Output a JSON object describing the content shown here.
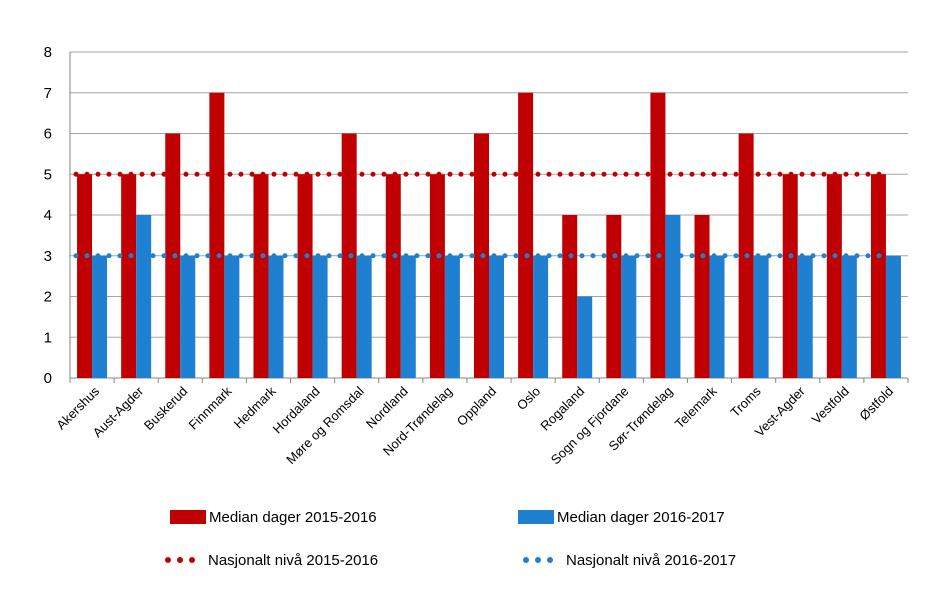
{
  "chart_data": {
    "type": "bar",
    "categories": [
      "Akershus",
      "Aust-Agder",
      "Buskerud",
      "Finnmark",
      "Hedmark",
      "Hordaland",
      "Møre og Romsdal",
      "Nordland",
      "Nord-Trøndelag",
      "Oppland",
      "Oslo",
      "Rogaland",
      "Sogn og Fjordane",
      "Sør-Trøndelag",
      "Telemark",
      "Troms",
      "Vest-Agder",
      "Vestfold",
      "Østfold"
    ],
    "series": [
      {
        "name": "Median dager 2015-2016",
        "color": "#c00000",
        "values": [
          5,
          5,
          6,
          7,
          5,
          5,
          6,
          5,
          5,
          6,
          7,
          4,
          4,
          7,
          4,
          6,
          5,
          5,
          5
        ]
      },
      {
        "name": "Median dager 2016-2017",
        "color": "#1f7fd0",
        "values": [
          3,
          4,
          3,
          3,
          3,
          3,
          3,
          3,
          3,
          3,
          3,
          2,
          3,
          4,
          3,
          3,
          3,
          3,
          3
        ]
      }
    ],
    "reference_lines": [
      {
        "name": "Nasjonalt nivå 2015-2016",
        "value": 5,
        "color": "#c00000",
        "style": "dotted"
      },
      {
        "name": "Nasjonalt nivå 2016-2017",
        "value": 3,
        "color": "#1f7fd0",
        "style": "dotted"
      }
    ],
    "ylim": [
      0,
      8
    ],
    "yticks": [
      0,
      1,
      2,
      3,
      4,
      5,
      6,
      7,
      8
    ],
    "grid": true,
    "legend_position": "bottom"
  }
}
